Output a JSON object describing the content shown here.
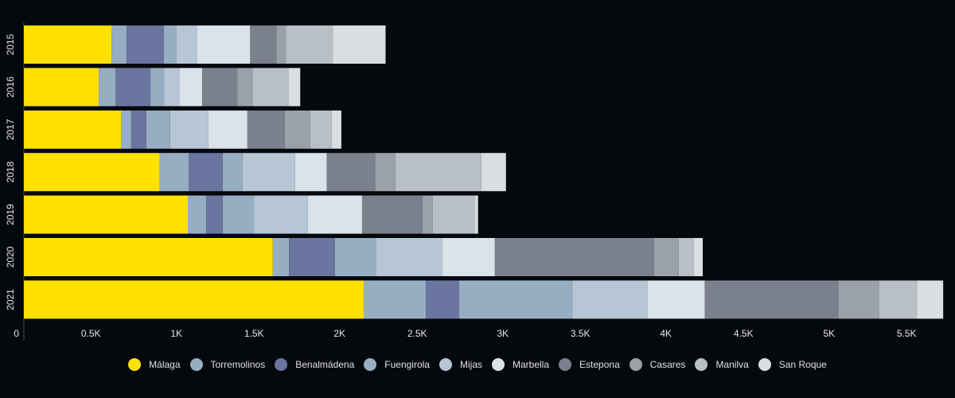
{
  "chart_data": {
    "type": "bar",
    "orientation": "horizontal",
    "stacked": true,
    "title": "",
    "xlabel": "",
    "ylabel": "",
    "categories": [
      "2015",
      "2016",
      "2017",
      "2018",
      "2019",
      "2020",
      "2021"
    ],
    "xlim": [
      0,
      5650
    ],
    "x_ticks": [
      0,
      500,
      1000,
      1500,
      2000,
      2500,
      3000,
      3500,
      4000,
      4500,
      5000,
      5500
    ],
    "x_tick_labels": [
      "0",
      "0.5K",
      "1K",
      "1.5K",
      "2K",
      "2.5K",
      "3K",
      "3.5K",
      "4K",
      "4.5K",
      "5K",
      "5.5K"
    ],
    "grid": false,
    "legend_position": "bottom",
    "series": [
      {
        "name": "Málaga",
        "color": "#FFE100",
        "values": [
          537,
          459,
          595,
          833,
          1005,
          1526,
          2083
        ]
      },
      {
        "name": "Torremolinos",
        "color": "#97ADC2",
        "values": [
          93,
          102,
          63,
          177,
          113,
          99,
          381
        ]
      },
      {
        "name": "Benalmádena",
        "color": "#6B76A0",
        "values": [
          228,
          215,
          93,
          209,
          101,
          282,
          204
        ]
      },
      {
        "name": "Fuengirola",
        "color": "#97ADC2",
        "values": [
          75,
          83,
          146,
          121,
          191,
          254,
          695
        ]
      },
      {
        "name": "Mijas",
        "color": "#B7C6D4",
        "values": [
          127,
          93,
          234,
          322,
          331,
          405,
          458
        ]
      },
      {
        "name": "Marbella",
        "color": "#DAE2EA",
        "values": [
          327,
          141,
          239,
          195,
          332,
          321,
          352
        ]
      },
      {
        "name": "Estepona",
        "color": "#7B818C",
        "values": [
          161,
          215,
          229,
          297,
          371,
          976,
          820
        ]
      },
      {
        "name": "Casares",
        "color": "#9AA1AA",
        "values": [
          59,
          93,
          156,
          123,
          63,
          151,
          249
        ]
      },
      {
        "name": "Manilva",
        "color": "#B8BFC6",
        "values": [
          288,
          220,
          132,
          527,
          259,
          93,
          232
        ]
      },
      {
        "name": "San Roque",
        "color": "#DADEE1",
        "values": [
          322,
          73,
          59,
          151,
          18,
          54,
          161
        ]
      }
    ]
  }
}
